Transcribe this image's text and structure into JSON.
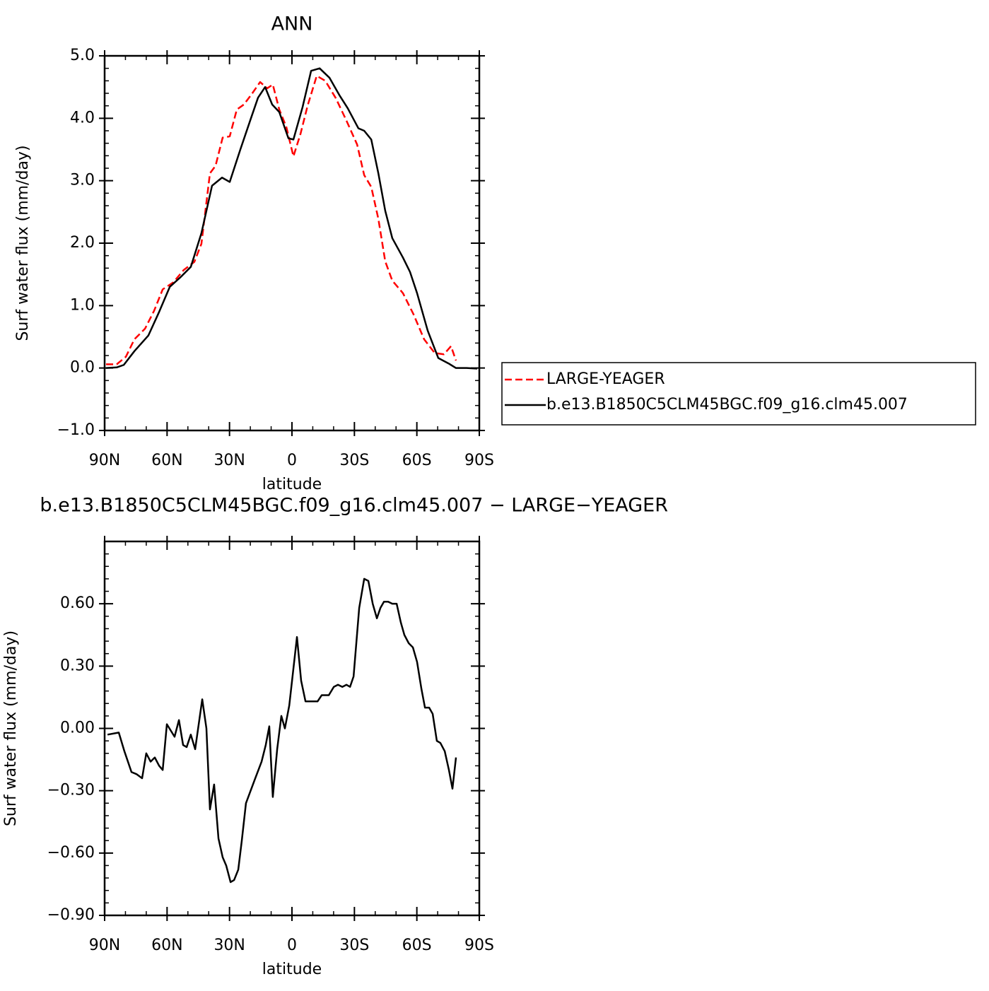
{
  "chart_data": [
    {
      "type": "line",
      "title": "ANN",
      "x_label": "latitude",
      "y_label": "Surf water flux (mm/day)",
      "xlim": [
        90,
        -90
      ],
      "xticks": [
        {
          "value": 90,
          "label": "90N"
        },
        {
          "value": 60,
          "label": "60N"
        },
        {
          "value": 30,
          "label": "30N"
        },
        0,
        {
          "value": -30,
          "label": "30S"
        },
        {
          "value": -60,
          "label": "60S"
        },
        {
          "value": -90,
          "label": "90S"
        }
      ],
      "ylim": [
        -1,
        5
      ],
      "yticks": [
        {
          "value": -1,
          "label": "−1.0"
        },
        {
          "value": 0,
          "label": "0.0"
        },
        {
          "value": 1,
          "label": "1.0"
        },
        {
          "value": 2,
          "label": "2.0"
        },
        {
          "value": 3,
          "label": "3.0"
        },
        {
          "value": 4,
          "label": "4.0"
        },
        {
          "value": 5,
          "label": "5.0"
        }
      ],
      "legend": "right",
      "series": [
        {
          "name": "LARGE-YEAGER",
          "color": "#ff0000",
          "line_style": "dashed",
          "x": [
            89.3,
            84.2,
            79.8,
            75.7,
            70.6,
            66.2,
            62.1,
            57.1,
            52.0,
            46.9,
            43.5,
            39.4,
            36.7,
            33.3,
            29.9,
            26.5,
            23.1,
            19.7,
            15.3,
            11.9,
            9.2,
            6.1,
            2.7,
            -0.7,
            -4.1,
            -7.5,
            -11.9,
            -16.0,
            -21.1,
            -26.2,
            -31.3,
            -34.7,
            -38.1,
            -41.5,
            -44.8,
            -48.2,
            -53.3,
            -58.4,
            -63.5,
            -68.6,
            -73.0,
            -76.4,
            -78.8
          ],
          "values": [
            0.06,
            0.06,
            0.18,
            0.46,
            0.63,
            0.92,
            1.26,
            1.37,
            1.57,
            1.7,
            1.99,
            3.12,
            3.24,
            3.69,
            3.71,
            4.14,
            4.22,
            4.37,
            4.58,
            4.48,
            4.54,
            4.14,
            3.86,
            3.39,
            3.75,
            4.2,
            4.68,
            4.6,
            4.32,
            3.96,
            3.58,
            3.09,
            2.9,
            2.39,
            1.71,
            1.4,
            1.2,
            0.86,
            0.46,
            0.24,
            0.22,
            0.35,
            0.12
          ]
        },
        {
          "name": "b.e13.B1850C5CLM45BGC.f09_g16.clm45.007",
          "color": "#000000",
          "line_style": "solid",
          "x": [
            89.3,
            84.2,
            80.8,
            75.7,
            69.0,
            63.8,
            58.7,
            53.7,
            48.6,
            43.5,
            38.4,
            33.6,
            29.9,
            24.8,
            19.7,
            16.3,
            12.9,
            9.5,
            6.1,
            1.7,
            -0.7,
            -5.1,
            -9.2,
            -13.3,
            -18.0,
            -22.8,
            -26.8,
            -31.9,
            -34.7,
            -38.1,
            -41.5,
            -44.8,
            -48.2,
            -53.3,
            -56.7,
            -60.1,
            -65.2,
            -70.3,
            -75.4,
            -78.8,
            -83.9,
            -89.0
          ],
          "values": [
            0.0,
            0.01,
            0.05,
            0.27,
            0.52,
            0.9,
            1.3,
            1.45,
            1.62,
            2.16,
            2.92,
            3.05,
            2.98,
            3.5,
            4.0,
            4.33,
            4.5,
            4.22,
            4.1,
            3.68,
            3.66,
            4.18,
            4.76,
            4.8,
            4.65,
            4.37,
            4.16,
            3.84,
            3.8,
            3.66,
            3.12,
            2.52,
            2.08,
            1.77,
            1.54,
            1.2,
            0.6,
            0.16,
            0.07,
            0.0,
            0.0,
            -0.01
          ]
        }
      ]
    },
    {
      "type": "line",
      "title": "b.e13.B1850C5CLM45BGC.f09_g16.clm45.007 − LARGE−YEAGER",
      "x_label": "latitude",
      "y_label": "Surf water flux (mm/day)",
      "xlim": [
        90,
        -90
      ],
      "xticks": [
        {
          "value": 90,
          "label": "90N"
        },
        {
          "value": 60,
          "label": "60N"
        },
        {
          "value": 30,
          "label": "30N"
        },
        0,
        {
          "value": -30,
          "label": "30S"
        },
        {
          "value": -60,
          "label": "60S"
        },
        {
          "value": -90,
          "label": "90S"
        }
      ],
      "ylim": [
        -0.9,
        0.9
      ],
      "yticks": [
        {
          "value": -0.9,
          "label": "−0.90"
        },
        {
          "value": -0.6,
          "label": "−0.60"
        },
        {
          "value": -0.3,
          "label": "−0.30"
        },
        {
          "value": 0,
          "label": "0.00"
        },
        {
          "value": 0.3,
          "label": "0.30"
        },
        {
          "value": 0.6,
          "label": "0.60"
        }
      ],
      "series": [
        {
          "color": "#000000",
          "line_style": "solid",
          "x": [
            88.6,
            83.2,
            80.5,
            77.1,
            74.7,
            72.0,
            70.0,
            67.9,
            65.9,
            63.8,
            62.1,
            60.1,
            56.4,
            54.3,
            52.3,
            50.6,
            48.6,
            46.5,
            43.1,
            41.1,
            39.4,
            37.4,
            35.3,
            33.3,
            31.6,
            29.5,
            27.8,
            25.8,
            24.1,
            22.1,
            18.0,
            14.6,
            12.6,
            10.9,
            9.2,
            7.1,
            5.1,
            3.4,
            1.3,
            -2.4,
            -4.4,
            -6.5,
            -10.2,
            -12.3,
            -14.3,
            -17.7,
            -20.1,
            -22.1,
            -24.2,
            -26.2,
            -27.9,
            -29.6,
            -32.3,
            -34.7,
            -36.7,
            -38.8,
            -40.8,
            -42.5,
            -44.2,
            -46.2,
            -48.2,
            -50.3,
            -52.3,
            -54.0,
            -56.1,
            -58.1,
            -60.1,
            -62.2,
            -63.9,
            -65.9,
            -67.6,
            -69.6,
            -71.3,
            -73.4,
            -75.4,
            -77.1,
            -78.8
          ],
          "values": [
            -0.03,
            -0.02,
            -0.11,
            -0.21,
            -0.22,
            -0.24,
            -0.12,
            -0.16,
            -0.14,
            -0.18,
            -0.2,
            0.02,
            -0.04,
            0.04,
            -0.08,
            -0.09,
            -0.03,
            -0.1,
            0.14,
            0.0,
            -0.39,
            -0.27,
            -0.53,
            -0.62,
            -0.66,
            -0.74,
            -0.73,
            -0.68,
            -0.54,
            -0.36,
            -0.25,
            -0.16,
            -0.08,
            0.01,
            -0.33,
            -0.1,
            0.06,
            0.0,
            0.11,
            0.44,
            0.23,
            0.13,
            0.13,
            0.13,
            0.16,
            0.16,
            0.2,
            0.21,
            0.2,
            0.21,
            0.2,
            0.25,
            0.58,
            0.72,
            0.71,
            0.6,
            0.53,
            0.58,
            0.61,
            0.61,
            0.6,
            0.6,
            0.51,
            0.45,
            0.41,
            0.39,
            0.32,
            0.19,
            0.1,
            0.1,
            0.07,
            -0.06,
            -0.07,
            -0.11,
            -0.2,
            -0.29,
            -0.14
          ]
        }
      ]
    }
  ]
}
